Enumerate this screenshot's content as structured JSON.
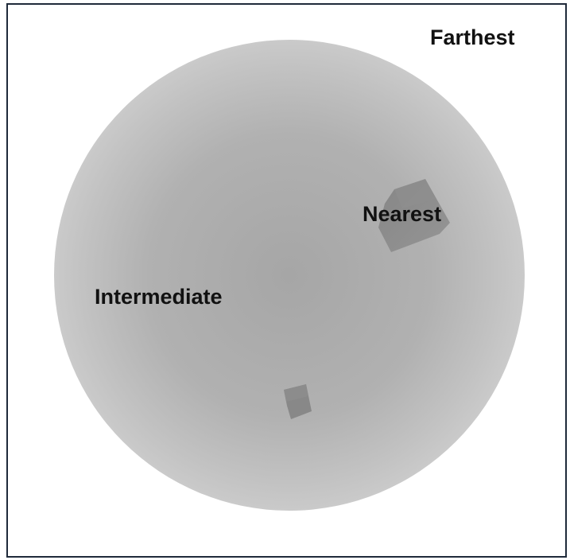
{
  "labels": {
    "farthest": "Farthest",
    "nearest": "Nearest",
    "intermediate": "Intermediate"
  },
  "colors": {
    "frame_border": "#1f2a3a",
    "background": "#ffffff",
    "sphere_center": "#a6a6a6",
    "sphere_edge": "#c9c9c9",
    "near_cube": "#8c8c8c",
    "small_cube": "#8a8a8a",
    "text": "#111111"
  }
}
